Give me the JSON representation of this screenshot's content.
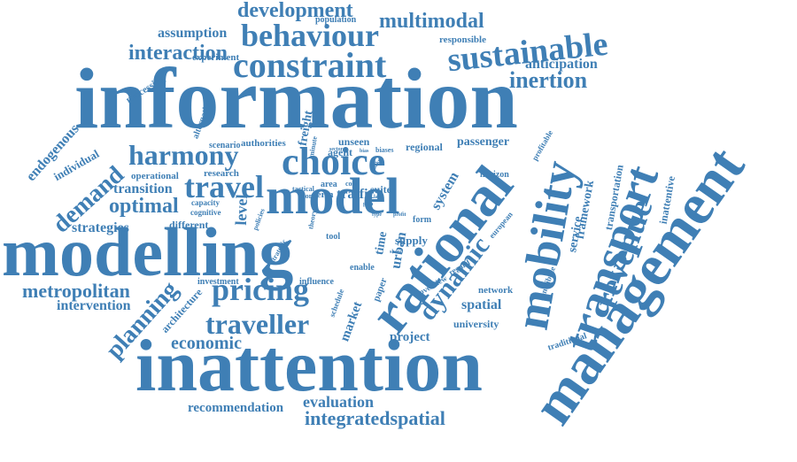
{
  "colors": {
    "word": "#3f7fb5",
    "background": "#ffffff"
  },
  "words": [
    "information",
    "inattention",
    "modelling",
    "management",
    "rational",
    "mobility",
    "transport",
    "model",
    "choice",
    "constraint",
    "behaviour",
    "sustainable",
    "development",
    "multimodal",
    "assumption",
    "interaction",
    "inertion",
    "anticipation",
    "harmony",
    "travel",
    "pricing",
    "traveller",
    "revenue",
    "dynamic",
    "planning",
    "demand",
    "optimal",
    "strategies",
    "transition",
    "metropolitan",
    "intervention",
    "economic",
    "evaluation",
    "recommendation",
    "integratedspatial",
    "endogenous",
    "individual",
    "operational",
    "processing",
    "alternative",
    "scenario",
    "authorities",
    "freight",
    "research",
    "level",
    "different",
    "capacity",
    "cognitive",
    "agent",
    "term",
    "traffic",
    "suite",
    "system",
    "regional",
    "passenger",
    "unseen",
    "framework",
    "service",
    "transportation",
    "inattentive",
    "contribute",
    "traditional",
    "network",
    "university",
    "spatial",
    "project",
    "market",
    "paper",
    "urban",
    "time",
    "enable",
    "supply",
    "influence",
    "investment",
    "architecture",
    "schedule",
    "overview",
    "regard",
    "tool",
    "form",
    "european",
    "profitable",
    "horizon",
    "population",
    "responsible",
    "experiment",
    "area",
    "tactical",
    "more",
    "cost",
    "minute",
    "sector",
    "bias",
    "biases",
    "maker",
    "profit",
    "theory",
    "policies",
    "strategic",
    "plan",
    "share",
    "land",
    "type"
  ]
}
